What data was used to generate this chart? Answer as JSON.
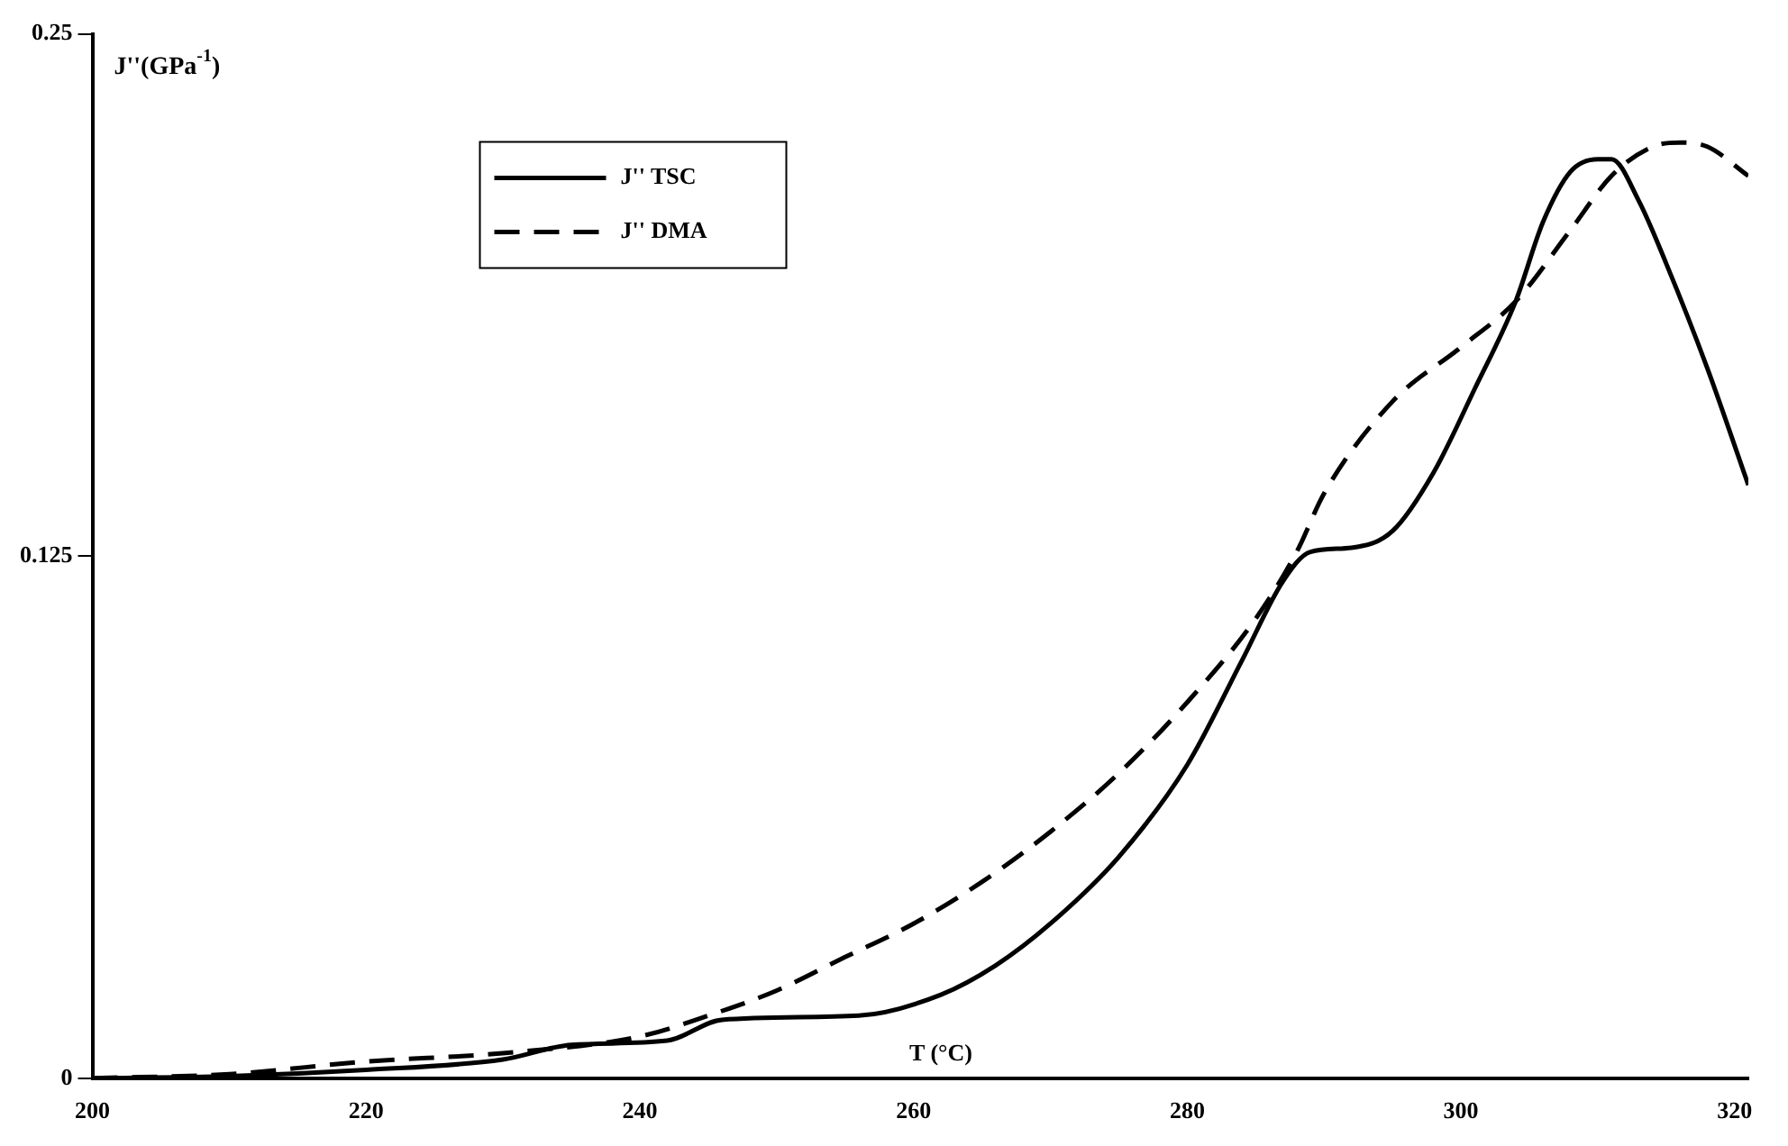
{
  "chart_data": {
    "type": "line",
    "xlabel": "T (°C)",
    "ylabel": "J''(GPa$^{-1}$)",
    "xlim": [
      200,
      321
    ],
    "xticks": [
      200,
      220,
      240,
      260,
      280,
      300,
      320
    ],
    "ylim": [
      0,
      0.25
    ],
    "yticks": [
      0,
      0.125,
      0.25
    ],
    "grid": false,
    "legend": "top left",
    "marker": "none",
    "series": [
      {
        "name": "J'' TSC",
        "color": "#000000",
        "line_style": "solid",
        "x": [
          200,
          210,
          220,
          230,
          235,
          242,
          246,
          256,
          262,
          266,
          270,
          275,
          280,
          284,
          287,
          289,
          292,
          295,
          298,
          301,
          304,
          306,
          308,
          310,
          311,
          313,
          315,
          318,
          321
        ],
        "values": [
          0,
          0.0005,
          0.002,
          0.0045,
          0.008,
          0.009,
          0.014,
          0.015,
          0.02,
          0.027,
          0.037,
          0.053,
          0.075,
          0.1,
          0.119,
          0.126,
          0.127,
          0.131,
          0.145,
          0.165,
          0.186,
          0.205,
          0.217,
          0.22,
          0.22,
          0.21,
          0.195,
          0.17,
          0.142
        ]
      },
      {
        "name": "J'' DMA",
        "color": "#000000",
        "line_style": "dashed",
        "x": [
          200,
          210,
          220,
          230,
          240,
          245,
          250,
          255,
          260,
          265,
          270,
          275,
          280,
          285,
          288,
          290,
          295,
          300,
          304,
          308,
          311,
          314,
          316,
          318,
          321
        ],
        "values": [
          0,
          0.001,
          0.004,
          0.006,
          0.01,
          0.015,
          0.021,
          0.029,
          0.037,
          0.047,
          0.059,
          0.073,
          0.09,
          0.11,
          0.126,
          0.14,
          0.162,
          0.175,
          0.186,
          0.203,
          0.216,
          0.223,
          0.224,
          0.223,
          0.216
        ]
      }
    ]
  }
}
